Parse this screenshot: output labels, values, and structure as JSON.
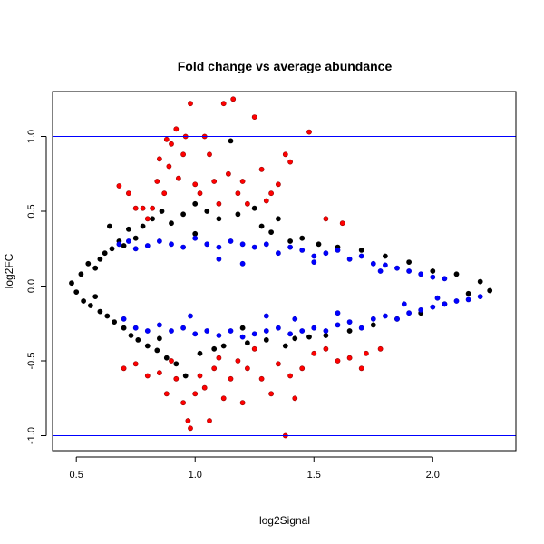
{
  "chart_data": {
    "type": "scatter",
    "title": "Fold change vs average abundance",
    "xlabel": "log2Signal",
    "ylabel": "log2FC",
    "xlim": [
      0.4,
      2.35
    ],
    "ylim": [
      -1.1,
      1.3
    ],
    "x_ticks": [
      0.5,
      1.0,
      1.5,
      2.0
    ],
    "x_tick_labels": [
      "0.5",
      "1.0",
      "1.5",
      "2.0"
    ],
    "y_ticks": [
      -1.0,
      -0.5,
      0.0,
      0.5,
      1.0
    ],
    "y_tick_labels": [
      "-1.0",
      "-0.5",
      "0.0",
      "0.5",
      "1.0"
    ],
    "grid": false,
    "reference_lines": {
      "y": [
        1.0,
        -1.0
      ],
      "color": "#0000ff"
    },
    "colors": {
      "not_significant": "#000000",
      "significant": "#0000ff",
      "significant_outline": "#0000cc",
      "large_change": "#ff0000",
      "large_change_outline": "#990000"
    },
    "series": [
      {
        "color": "#000000",
        "points": [
          [
            0.48,
            0.02
          ],
          [
            0.5,
            -0.04
          ],
          [
            0.52,
            0.08
          ],
          [
            0.53,
            -0.1
          ],
          [
            0.55,
            0.15
          ],
          [
            0.56,
            -0.13
          ],
          [
            0.58,
            0.12
          ],
          [
            0.58,
            -0.07
          ],
          [
            0.6,
            0.18
          ],
          [
            0.6,
            -0.17
          ],
          [
            0.62,
            0.22
          ],
          [
            0.63,
            -0.2
          ],
          [
            0.65,
            0.25
          ],
          [
            0.66,
            -0.24
          ],
          [
            0.68,
            0.3
          ],
          [
            0.7,
            -0.28
          ],
          [
            0.72,
            0.38
          ],
          [
            0.73,
            -0.33
          ],
          [
            0.75,
            0.32
          ],
          [
            0.76,
            -0.36
          ],
          [
            0.78,
            0.4
          ],
          [
            0.8,
            -0.4
          ],
          [
            0.82,
            0.45
          ],
          [
            0.84,
            -0.43
          ],
          [
            0.86,
            0.5
          ],
          [
            0.88,
            -0.48
          ],
          [
            0.9,
            0.42
          ],
          [
            0.92,
            -0.52
          ],
          [
            0.95,
            0.48
          ],
          [
            0.96,
            -0.6
          ],
          [
            1.0,
            0.55
          ],
          [
            1.02,
            -0.45
          ],
          [
            1.05,
            0.5
          ],
          [
            1.08,
            -0.42
          ],
          [
            1.1,
            0.45
          ],
          [
            1.12,
            -0.4
          ],
          [
            1.15,
            0.97
          ],
          [
            1.18,
            0.48
          ],
          [
            1.22,
            -0.38
          ],
          [
            1.25,
            0.52
          ],
          [
            1.28,
            0.4
          ],
          [
            1.3,
            -0.36
          ],
          [
            1.35,
            0.45
          ],
          [
            1.38,
            -0.4
          ],
          [
            1.4,
            0.3
          ],
          [
            1.42,
            -0.35
          ],
          [
            1.45,
            0.32
          ],
          [
            1.48,
            -0.34
          ],
          [
            1.52,
            0.28
          ],
          [
            1.55,
            -0.33
          ],
          [
            1.6,
            0.26
          ],
          [
            1.65,
            -0.3
          ],
          [
            1.7,
            0.24
          ],
          [
            1.75,
            -0.26
          ],
          [
            1.8,
            0.2
          ],
          [
            1.85,
            -0.22
          ],
          [
            1.9,
            0.16
          ],
          [
            1.95,
            -0.18
          ],
          [
            2.0,
            0.1
          ],
          [
            2.05,
            -0.12
          ],
          [
            2.1,
            0.08
          ],
          [
            2.15,
            -0.05
          ],
          [
            2.2,
            0.03
          ],
          [
            2.24,
            -0.03
          ],
          [
            0.64,
            0.4
          ],
          [
            1.0,
            0.35
          ],
          [
            0.85,
            -0.35
          ],
          [
            1.2,
            -0.28
          ],
          [
            0.7,
            0.27
          ],
          [
            1.32,
            0.36
          ]
        ]
      },
      {
        "color": "#0000ff",
        "points": [
          [
            0.68,
            0.28
          ],
          [
            0.72,
            0.3
          ],
          [
            0.75,
            0.25
          ],
          [
            0.8,
            0.27
          ],
          [
            0.85,
            0.3
          ],
          [
            0.9,
            0.28
          ],
          [
            0.95,
            0.26
          ],
          [
            1.0,
            0.32
          ],
          [
            1.05,
            0.28
          ],
          [
            1.1,
            0.26
          ],
          [
            1.15,
            0.3
          ],
          [
            1.2,
            0.28
          ],
          [
            1.25,
            0.26
          ],
          [
            1.3,
            0.28
          ],
          [
            1.35,
            0.22
          ],
          [
            1.4,
            0.26
          ],
          [
            1.45,
            0.24
          ],
          [
            1.5,
            0.2
          ],
          [
            1.55,
            0.22
          ],
          [
            1.6,
            0.24
          ],
          [
            1.65,
            0.18
          ],
          [
            1.7,
            0.2
          ],
          [
            1.75,
            0.15
          ],
          [
            1.8,
            0.14
          ],
          [
            1.85,
            0.12
          ],
          [
            1.9,
            0.1
          ],
          [
            1.95,
            0.08
          ],
          [
            2.0,
            0.06
          ],
          [
            2.05,
            0.05
          ],
          [
            0.7,
            -0.22
          ],
          [
            0.75,
            -0.28
          ],
          [
            0.8,
            -0.3
          ],
          [
            0.85,
            -0.26
          ],
          [
            0.9,
            -0.3
          ],
          [
            0.95,
            -0.28
          ],
          [
            1.0,
            -0.32
          ],
          [
            1.05,
            -0.3
          ],
          [
            1.1,
            -0.33
          ],
          [
            1.15,
            -0.3
          ],
          [
            1.2,
            -0.34
          ],
          [
            1.25,
            -0.32
          ],
          [
            1.3,
            -0.3
          ],
          [
            1.35,
            -0.28
          ],
          [
            1.4,
            -0.32
          ],
          [
            1.45,
            -0.3
          ],
          [
            1.5,
            -0.28
          ],
          [
            1.55,
            -0.3
          ],
          [
            1.6,
            -0.26
          ],
          [
            1.65,
            -0.24
          ],
          [
            1.7,
            -0.28
          ],
          [
            1.75,
            -0.22
          ],
          [
            1.8,
            -0.2
          ],
          [
            1.85,
            -0.22
          ],
          [
            1.9,
            -0.18
          ],
          [
            1.95,
            -0.16
          ],
          [
            2.0,
            -0.14
          ],
          [
            2.05,
            -0.12
          ],
          [
            2.1,
            -0.1
          ],
          [
            2.15,
            -0.09
          ],
          [
            2.2,
            -0.07
          ],
          [
            1.1,
            0.18
          ],
          [
            1.3,
            -0.2
          ],
          [
            1.5,
            0.16
          ],
          [
            1.6,
            -0.18
          ],
          [
            1.2,
            0.15
          ],
          [
            0.98,
            -0.2
          ],
          [
            1.42,
            -0.22
          ],
          [
            1.78,
            0.1
          ],
          [
            1.88,
            -0.12
          ],
          [
            2.02,
            -0.08
          ]
        ]
      },
      {
        "color": "#ff0000",
        "points": [
          [
            0.68,
            0.67
          ],
          [
            0.72,
            0.62
          ],
          [
            0.75,
            0.52
          ],
          [
            0.78,
            0.52
          ],
          [
            0.8,
            0.45
          ],
          [
            0.82,
            0.52
          ],
          [
            0.84,
            0.7
          ],
          [
            0.85,
            0.85
          ],
          [
            0.87,
            0.62
          ],
          [
            0.88,
            0.98
          ],
          [
            0.89,
            0.8
          ],
          [
            0.9,
            0.95
          ],
          [
            0.92,
            1.05
          ],
          [
            0.93,
            0.72
          ],
          [
            0.95,
            0.88
          ],
          [
            0.96,
            1.0
          ],
          [
            0.98,
            1.22
          ],
          [
            1.0,
            0.68
          ],
          [
            1.02,
            0.62
          ],
          [
            1.04,
            1.0
          ],
          [
            1.06,
            0.88
          ],
          [
            1.08,
            0.7
          ],
          [
            1.1,
            0.55
          ],
          [
            1.12,
            1.22
          ],
          [
            1.14,
            0.75
          ],
          [
            1.16,
            1.25
          ],
          [
            1.18,
            0.62
          ],
          [
            1.2,
            0.7
          ],
          [
            1.22,
            0.55
          ],
          [
            1.25,
            1.13
          ],
          [
            1.28,
            0.78
          ],
          [
            1.3,
            0.57
          ],
          [
            1.32,
            0.62
          ],
          [
            1.35,
            0.68
          ],
          [
            1.38,
            0.88
          ],
          [
            1.4,
            0.83
          ],
          [
            1.48,
            1.03
          ],
          [
            1.55,
            0.45
          ],
          [
            1.62,
            0.42
          ],
          [
            0.7,
            -0.55
          ],
          [
            0.75,
            -0.52
          ],
          [
            0.8,
            -0.6
          ],
          [
            0.85,
            -0.58
          ],
          [
            0.88,
            -0.72
          ],
          [
            0.9,
            -0.5
          ],
          [
            0.92,
            -0.62
          ],
          [
            0.95,
            -0.78
          ],
          [
            0.97,
            -0.9
          ],
          [
            0.98,
            -0.95
          ],
          [
            1.0,
            -0.72
          ],
          [
            1.02,
            -0.6
          ],
          [
            1.04,
            -0.68
          ],
          [
            1.06,
            -0.9
          ],
          [
            1.08,
            -0.55
          ],
          [
            1.1,
            -0.48
          ],
          [
            1.12,
            -0.75
          ],
          [
            1.15,
            -0.62
          ],
          [
            1.18,
            -0.5
          ],
          [
            1.2,
            -0.78
          ],
          [
            1.22,
            -0.55
          ],
          [
            1.25,
            -0.42
          ],
          [
            1.28,
            -0.62
          ],
          [
            1.32,
            -0.72
          ],
          [
            1.35,
            -0.52
          ],
          [
            1.38,
            -1.0
          ],
          [
            1.4,
            -0.6
          ],
          [
            1.42,
            -0.75
          ],
          [
            1.45,
            -0.55
          ],
          [
            1.5,
            -0.45
          ],
          [
            1.55,
            -0.42
          ],
          [
            1.6,
            -0.5
          ],
          [
            1.65,
            -0.48
          ],
          [
            1.7,
            -0.55
          ],
          [
            1.72,
            -0.45
          ],
          [
            1.78,
            -0.42
          ]
        ]
      }
    ]
  }
}
